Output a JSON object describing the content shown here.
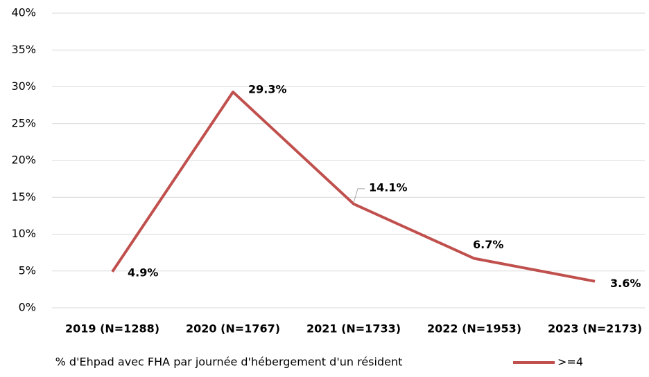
{
  "chart_data": {
    "type": "line",
    "categories": [
      "2019 (N=1288)",
      "2020 (N=1767)",
      "2021 (N=1733)",
      "2022 (N=1953)",
      "2023 (N=2173)"
    ],
    "series": [
      {
        "name": ">=4",
        "color": "#c0504d",
        "values": [
          4.9,
          29.3,
          14.1,
          6.7,
          3.6
        ],
        "value_labels": [
          "4.9%",
          "29.3%",
          "14.1%",
          "6.7%",
          "3.6%"
        ]
      }
    ],
    "x_label": "% d'Ehpad avec FHA par journée d'hébergement d'un résident",
    "ylim": [
      0,
      40
    ],
    "yticks": [
      {
        "value": 0,
        "label": "0%"
      },
      {
        "value": 5,
        "label": "5%"
      },
      {
        "value": 10,
        "label": "10%"
      },
      {
        "value": 15,
        "label": "15%"
      },
      {
        "value": 20,
        "label": "20%"
      },
      {
        "value": 25,
        "label": "25%"
      },
      {
        "value": 30,
        "label": "30%"
      },
      {
        "value": 35,
        "label": "35%"
      },
      {
        "value": 40,
        "label": "40%"
      }
    ],
    "grid": true
  }
}
